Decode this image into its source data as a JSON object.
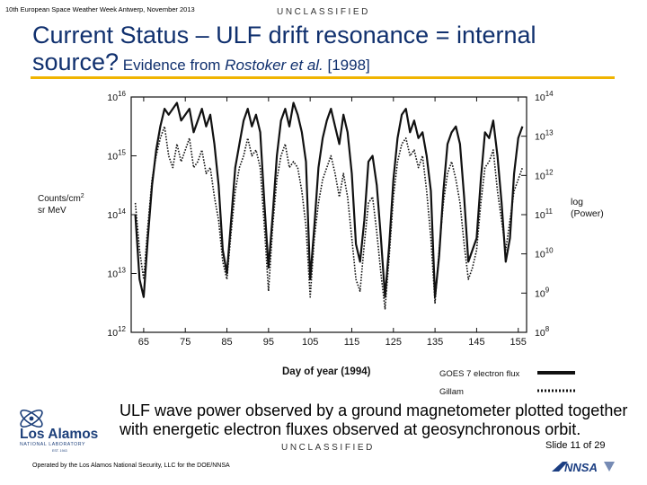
{
  "header": {
    "meeting": "10th European Space Weather Week Antwerp, November 2013",
    "classification": "UNCLASSIFIED"
  },
  "title": {
    "line1": "Current Status – ULF drift resonance = internal",
    "line2_main": "source?",
    "line2_sub_a": " Evidence from ",
    "line2_sub_italic": "Rostoker et al.",
    "line2_sub_b": " [1998]"
  },
  "caption": {
    "line1": "ULF wave power observed by a ground magnetometer plotted together",
    "line2": "with energetic electron fluxes observed at geosynchronous orbit."
  },
  "footer": {
    "classification": "UNCLASSIFIED",
    "slide": "Slide 11  of 29",
    "operated_by": "Operated by the Los Alamos National Security, LLC for the DOE/NNSA"
  },
  "logos": {
    "lanl_line1": "Los Alamos",
    "lanl_line2": "NATIONAL LABORATORY",
    "lanl_line3": "EST. 1943",
    "nnsa": "NNSA"
  },
  "colors": {
    "title": "#10306e",
    "rule": "#f0b400",
    "lanl_blue": "#1c3f7a",
    "nnsa_blue": "#1b3e82"
  },
  "chart_data": {
    "type": "line",
    "xlabel": "Day of year (1994)",
    "ylabel_left": [
      "Counts/cm",
      "sr MeV"
    ],
    "ylabel_left_sup": "2",
    "ylabel_right": [
      "log",
      "(Power)"
    ],
    "xlim": [
      62,
      157
    ],
    "x_ticks": [
      65,
      75,
      85,
      95,
      105,
      115,
      125,
      135,
      145,
      155
    ],
    "ylim_left_log10": [
      12,
      16
    ],
    "y_left_ticks": [
      12,
      13,
      14,
      15,
      16
    ],
    "ylim_right_log10": [
      8,
      14
    ],
    "y_right_ticks": [
      8,
      9,
      10,
      11,
      12,
      13,
      14
    ],
    "tick_base": "10",
    "legend": {
      "placement": "bottom-right",
      "entries": [
        {
          "name": "GOES 7 electron flux",
          "style": "solid"
        },
        {
          "name": "Gillam",
          "style": "dotted"
        }
      ]
    },
    "series": [
      {
        "name": "GOES 7 electron flux",
        "axis": "left",
        "style": "solid",
        "x": [
          63,
          64,
          65,
          66,
          67,
          68,
          69,
          70,
          71,
          72,
          73,
          74,
          75,
          76,
          77,
          78,
          79,
          80,
          81,
          82,
          83,
          84,
          85,
          86,
          87,
          88,
          89,
          90,
          91,
          92,
          93,
          94,
          95,
          96,
          97,
          98,
          99,
          100,
          101,
          102,
          103,
          104,
          105,
          106,
          107,
          108,
          109,
          110,
          111,
          112,
          113,
          114,
          115,
          116,
          117,
          118,
          119,
          120,
          121,
          122,
          123,
          124,
          125,
          126,
          127,
          128,
          129,
          130,
          131,
          132,
          133,
          134,
          135,
          136,
          137,
          138,
          139,
          140,
          141,
          142,
          143,
          144,
          145,
          146,
          147,
          148,
          149,
          150,
          151,
          152,
          153,
          154,
          155,
          156
        ],
        "y": [
          14.0,
          12.9,
          12.6,
          13.6,
          14.5,
          15.1,
          15.5,
          15.8,
          15.7,
          15.8,
          15.9,
          15.6,
          15.7,
          15.8,
          15.4,
          15.6,
          15.8,
          15.5,
          15.7,
          15.2,
          14.5,
          13.4,
          13.0,
          13.9,
          14.8,
          15.2,
          15.6,
          15.8,
          15.5,
          15.7,
          15.4,
          14.2,
          13.1,
          14.0,
          15.0,
          15.6,
          15.8,
          15.5,
          15.9,
          15.7,
          15.4,
          14.9,
          12.9,
          13.8,
          14.8,
          15.3,
          15.6,
          15.8,
          15.5,
          15.2,
          15.7,
          15.4,
          14.7,
          13.5,
          13.2,
          13.9,
          14.9,
          15.0,
          14.5,
          13.6,
          12.6,
          13.5,
          14.6,
          15.3,
          15.7,
          15.8,
          15.4,
          15.6,
          15.3,
          15.4,
          15.0,
          14.4,
          12.6,
          13.3,
          14.4,
          15.2,
          15.4,
          15.5,
          15.2,
          14.3,
          13.2,
          13.4,
          13.6,
          14.6,
          15.4,
          15.3,
          15.6,
          15.0,
          14.2,
          13.2,
          13.6,
          14.7,
          15.3,
          15.5
        ]
      },
      {
        "name": "Gillam",
        "axis": "left",
        "style": "dotted",
        "x": [
          63,
          64,
          65,
          66,
          67,
          68,
          69,
          70,
          71,
          72,
          73,
          74,
          75,
          76,
          77,
          78,
          79,
          80,
          81,
          82,
          83,
          84,
          85,
          86,
          87,
          88,
          89,
          90,
          91,
          92,
          93,
          94,
          95,
          96,
          97,
          98,
          99,
          100,
          101,
          102,
          103,
          104,
          105,
          106,
          107,
          108,
          109,
          110,
          111,
          112,
          113,
          114,
          115,
          116,
          117,
          118,
          119,
          120,
          121,
          122,
          123,
          124,
          125,
          126,
          127,
          128,
          129,
          130,
          131,
          132,
          133,
          134,
          135,
          136,
          137,
          138,
          139,
          140,
          141,
          142,
          143,
          144,
          145,
          146,
          147,
          148,
          149,
          150,
          151,
          152,
          153,
          154,
          155,
          156
        ],
        "y": [
          14.2,
          13.4,
          12.9,
          13.8,
          14.6,
          15.0,
          15.3,
          15.5,
          15.0,
          14.8,
          15.2,
          14.9,
          15.1,
          15.3,
          14.8,
          14.9,
          15.1,
          14.7,
          14.8,
          14.3,
          13.9,
          13.2,
          12.9,
          13.7,
          14.4,
          14.8,
          15.0,
          15.3,
          15.0,
          15.1,
          14.8,
          13.8,
          12.7,
          13.8,
          14.6,
          15.0,
          15.2,
          14.8,
          14.9,
          14.8,
          14.4,
          13.8,
          12.6,
          13.6,
          14.2,
          14.6,
          14.8,
          15.0,
          14.7,
          14.3,
          14.7,
          14.3,
          13.6,
          12.9,
          12.7,
          13.5,
          14.2,
          14.3,
          13.7,
          13.0,
          12.4,
          13.3,
          14.3,
          14.9,
          15.2,
          15.3,
          15.0,
          15.1,
          14.8,
          15.0,
          14.4,
          13.6,
          12.5,
          13.4,
          14.2,
          14.7,
          14.9,
          14.6,
          14.2,
          13.5,
          12.9,
          13.1,
          13.4,
          14.2,
          14.8,
          14.9,
          15.1,
          14.4,
          13.9,
          13.4,
          13.9,
          14.4,
          14.6,
          14.8
        ]
      }
    ]
  }
}
